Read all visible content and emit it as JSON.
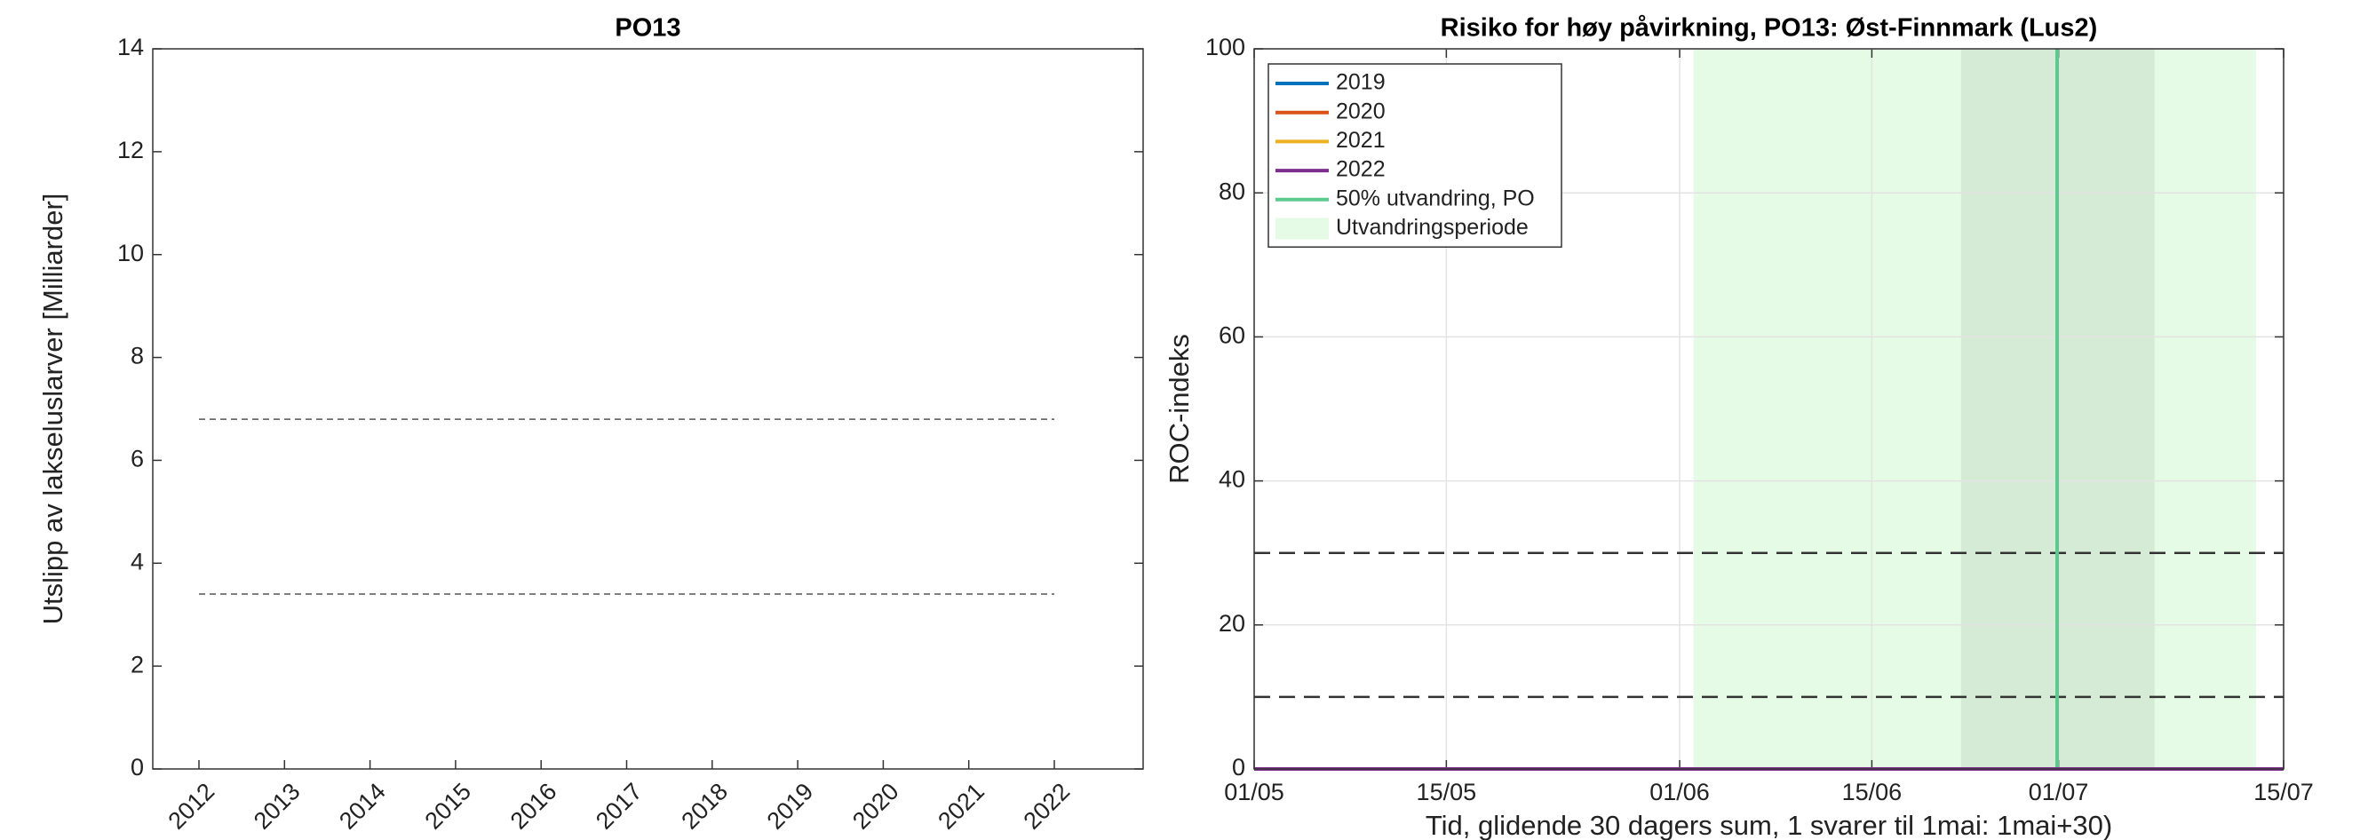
{
  "chart_data": [
    {
      "type": "bar",
      "title": "PO13",
      "ylabel": "Utslipp av lakseluslarver [Milliarder]",
      "categories": [
        "2012",
        "2013",
        "2014",
        "2015",
        "2016",
        "2017",
        "2018",
        "2019",
        "2020",
        "2021",
        "2022"
      ],
      "values": [
        null,
        null,
        null,
        0,
        0,
        0,
        0,
        0,
        null,
        0,
        0
      ],
      "color": "#000000",
      "ylim": [
        0,
        14
      ],
      "yticks": [
        0,
        2,
        4,
        6,
        8,
        10,
        12,
        14
      ],
      "hlines": [
        6.8,
        3.4
      ],
      "grid": false
    },
    {
      "type": "line",
      "title": "Risiko for høy påvirkning, PO13: Øst-Finnmark (Lus2)",
      "xlabel": "Tid, glidende 30 dagers sum, 1 svarer til 1mai: 1mai+30)",
      "ylabel": "ROC-indeks",
      "x": [
        0,
        75
      ],
      "xlim": [
        0,
        75
      ],
      "xticks": [
        {
          "value": 0,
          "label": "01/05"
        },
        {
          "value": 14,
          "label": "15/05"
        },
        {
          "value": 31,
          "label": "01/06"
        },
        {
          "value": 45,
          "label": "15/06"
        },
        {
          "value": 58.6,
          "label": "01/07"
        },
        {
          "value": 75,
          "label": "15/07"
        }
      ],
      "ylim": [
        0,
        100
      ],
      "yticks": [
        0,
        20,
        40,
        60,
        80,
        100
      ],
      "grid": true,
      "legend": "upper left",
      "hlines": [
        30,
        10
      ],
      "series": [
        {
          "name": "2019",
          "color": "#0072bd",
          "values": [
            0,
            0
          ]
        },
        {
          "name": "2020",
          "color": "#d95319",
          "values": [
            0,
            0
          ]
        },
        {
          "name": "2021",
          "color": "#edb120",
          "values": [
            0,
            0
          ]
        },
        {
          "name": "2022",
          "color": "#7e2f8e",
          "values": [
            0,
            0
          ]
        }
      ],
      "vline": {
        "name": "50% utvandring, PO",
        "color": "#5cc98f",
        "x": 58.5
      },
      "period": {
        "name": "Utvandringsperiode",
        "color": "#e5fbe5",
        "range": [
          32,
          73
        ]
      },
      "core_period": {
        "color": "#d6ebd6",
        "range": [
          51.5,
          65.6
        ]
      }
    }
  ]
}
